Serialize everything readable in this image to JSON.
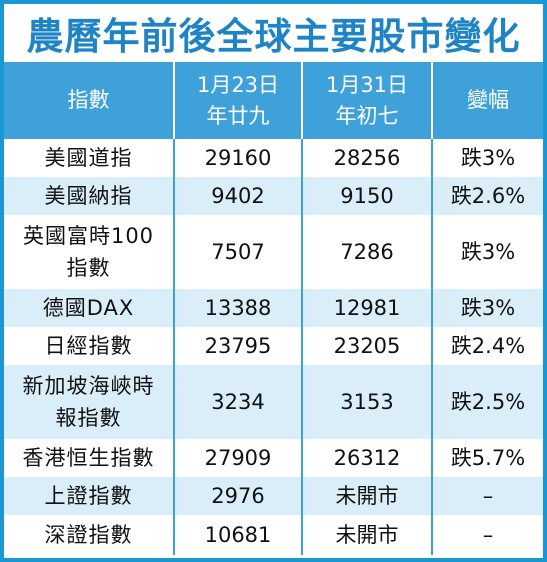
{
  "title": "農曆年前後全球主要股市變化",
  "headers": {
    "index": "指數",
    "date1_line1": "1月23日",
    "date1_line2": "年廿九",
    "date2_line1": "1月31日",
    "date2_line2": "年初七",
    "change": "變幅"
  },
  "rows": [
    {
      "name_lines": [
        "美國道指"
      ],
      "jan23": "29160",
      "jan31": "28256",
      "change": "跌3%"
    },
    {
      "name_lines": [
        "美國納指"
      ],
      "jan23": "9402",
      "jan31": "9150",
      "change": "跌2.6%"
    },
    {
      "name_lines": [
        "英國富時100",
        "指數"
      ],
      "jan23": "7507",
      "jan31": "7286",
      "change": "跌3%"
    },
    {
      "name_lines": [
        "德國DAX"
      ],
      "jan23": "13388",
      "jan31": "12981",
      "change": "跌3%"
    },
    {
      "name_lines": [
        "日經指數"
      ],
      "jan23": "23795",
      "jan31": "23205",
      "change": "跌2.4%"
    },
    {
      "name_lines": [
        "新加坡海峽時",
        "報指數"
      ],
      "jan23": "3234",
      "jan31": "3153",
      "change": "跌2.5%"
    },
    {
      "name_lines": [
        "香港恒生指數"
      ],
      "jan23": "27909",
      "jan31": "26312",
      "change": "跌5.7%"
    },
    {
      "name_lines": [
        "上證指數"
      ],
      "jan23": "2976",
      "jan31": "未開市",
      "change": "–"
    },
    {
      "name_lines": [
        "深證指數"
      ],
      "jan23": "10681",
      "jan31": "未開市",
      "change": "–"
    }
  ]
}
